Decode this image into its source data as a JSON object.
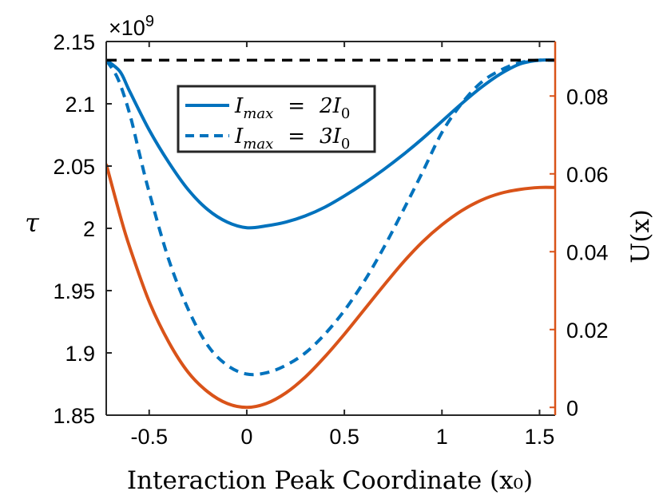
{
  "chart_data": {
    "type": "line",
    "xlabel": "Interaction Peak Coordinate (x₀)",
    "ylabel_left": "τ",
    "ylabel_right": "U(x)",
    "exponent_label": "×10",
    "exponent_power": "9",
    "xlim": [
      -0.72,
      1.58
    ],
    "ylim_left": [
      1.85,
      2.15
    ],
    "ylim_right": [
      -0.002,
      0.094
    ],
    "x_ticks": [
      -0.5,
      0,
      0.5,
      1,
      1.5
    ],
    "x_tick_labels": [
      "-0.5",
      "0",
      "0.5",
      "1",
      "1.5"
    ],
    "y_left_ticks": [
      1.85,
      1.9,
      1.95,
      2.0,
      2.05,
      2.1,
      2.15
    ],
    "y_left_tick_labels": [
      "1.85",
      "1.9",
      "1.95",
      "2",
      "2.05",
      "2.1",
      "2.15"
    ],
    "y_right_ticks": [
      0,
      0.02,
      0.04,
      0.06,
      0.08
    ],
    "y_right_tick_labels": [
      "0",
      "0.02",
      "0.04",
      "0.06",
      "0.08"
    ],
    "legend": [
      {
        "label": "I_max = 2I_0",
        "text_main": "I",
        "text_sub": "max",
        "text_eq": "=",
        "text_rhs": "2I",
        "text_rhs_sub": "0",
        "color": "#0072BD",
        "dash": "solid"
      },
      {
        "label": "I_max = 3I_0",
        "text_main": "I",
        "text_sub": "max",
        "text_eq": "=",
        "text_rhs": "3I",
        "text_rhs_sub": "0",
        "color": "#0072BD",
        "dash": "dashed"
      }
    ],
    "legend_position": "top-center",
    "series": [
      {
        "name": "I_max = 2I_0",
        "axis": "left",
        "color": "#0072BD",
        "dash": "solid",
        "x": [
          -0.72,
          -0.65,
          -0.6,
          -0.5,
          -0.4,
          -0.3,
          -0.2,
          -0.1,
          0,
          0.1,
          0.2,
          0.3,
          0.4,
          0.5,
          0.6,
          0.7,
          0.8,
          0.9,
          1.0,
          1.1,
          1.2,
          1.3,
          1.4,
          1.5,
          1.58
        ],
        "y": [
          2.135,
          2.126,
          2.11,
          2.079,
          2.053,
          2.031,
          2.015,
          2.005,
          2.0005,
          2.002,
          2.005,
          2.01,
          2.017,
          2.026,
          2.036,
          2.047,
          2.059,
          2.072,
          2.086,
          2.1,
          2.113,
          2.124,
          2.132,
          2.135,
          2.135
        ]
      },
      {
        "name": "I_max = 3I_0",
        "axis": "left",
        "color": "#0072BD",
        "dash": "dashed",
        "x": [
          -0.72,
          -0.66,
          -0.6,
          -0.55,
          -0.5,
          -0.4,
          -0.3,
          -0.2,
          -0.1,
          0,
          0.1,
          0.2,
          0.3,
          0.4,
          0.5,
          0.6,
          0.7,
          0.8,
          0.9,
          1.0,
          1.1,
          1.2,
          1.3,
          1.4,
          1.5,
          1.58
        ],
        "y": [
          2.135,
          2.12,
          2.092,
          2.06,
          2.029,
          1.975,
          1.935,
          1.906,
          1.89,
          1.883,
          1.884,
          1.89,
          1.9,
          1.915,
          1.934,
          1.957,
          1.984,
          2.014,
          2.045,
          2.077,
          2.1,
          2.117,
          2.127,
          2.133,
          2.135,
          2.135
        ]
      },
      {
        "name": "U(x)",
        "axis": "right",
        "color": "#D95319",
        "dash": "solid",
        "x": [
          -0.72,
          -0.65,
          -0.6,
          -0.5,
          -0.4,
          -0.3,
          -0.2,
          -0.1,
          0,
          0.1,
          0.2,
          0.3,
          0.4,
          0.5,
          0.6,
          0.7,
          0.8,
          0.9,
          1.0,
          1.1,
          1.2,
          1.3,
          1.4,
          1.5,
          1.58
        ],
        "y": [
          0.0625,
          0.0495,
          0.0412,
          0.0272,
          0.0168,
          0.009,
          0.004,
          0.001,
          0.0,
          0.001,
          0.0037,
          0.0078,
          0.013,
          0.0188,
          0.025,
          0.0312,
          0.0372,
          0.0425,
          0.0469,
          0.0505,
          0.0532,
          0.055,
          0.056,
          0.0565,
          0.0565
        ]
      }
    ],
    "reference_line": {
      "name": "max τ reference",
      "axis": "left",
      "y": 2.135,
      "color": "#000000",
      "dash": "dashed"
    },
    "right_axis_color": "#D95319"
  }
}
